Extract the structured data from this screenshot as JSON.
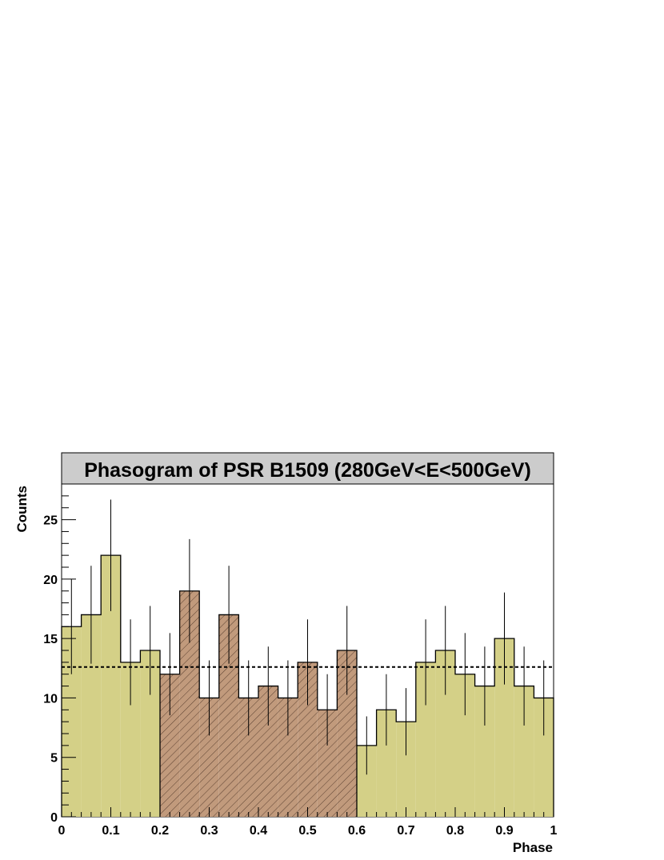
{
  "chart_data": {
    "type": "histogram",
    "title": "Phasogram of PSR B1509 (280GeV<E<500GeV)",
    "xlabel": "Phase",
    "ylabel": "Counts",
    "xlim": [
      0,
      1
    ],
    "ylim": [
      0,
      28
    ],
    "bin_width": 0.04,
    "bins_x0": [
      0.0,
      0.04,
      0.08,
      0.12,
      0.16,
      0.2,
      0.24,
      0.28,
      0.32,
      0.36,
      0.4,
      0.44,
      0.48,
      0.52,
      0.56,
      0.6,
      0.64,
      0.68,
      0.72,
      0.76,
      0.8,
      0.84,
      0.88,
      0.92,
      0.96
    ],
    "counts": [
      16,
      17,
      22,
      13,
      14,
      12,
      19,
      10,
      17,
      10,
      11,
      10,
      13,
      9,
      14,
      6,
      9,
      8,
      13,
      14,
      12,
      11,
      15,
      11,
      10
    ],
    "errors": [
      4,
      4.12,
      4.69,
      3.61,
      3.74,
      3.46,
      4.36,
      3.16,
      4.12,
      3.16,
      3.32,
      3.16,
      3.61,
      3,
      3.74,
      2.45,
      3,
      2.83,
      3.61,
      3.74,
      3.46,
      3.32,
      3.87,
      3.32,
      3.16
    ],
    "on_region": [
      0.2,
      0.6
    ],
    "background_level": 12.6,
    "x_ticks": [
      "0",
      "0.1",
      "0.2",
      "0.3",
      "0.4",
      "0.5",
      "0.6",
      "0.7",
      "0.8",
      "0.9",
      "1"
    ],
    "y_ticks": [
      "0",
      "5",
      "10",
      "15",
      "20",
      "25"
    ],
    "colors": {
      "off_fill": "#d4d087",
      "on_fill": "#c19a7c",
      "on_hatch": "#5a4030",
      "title_box": "#cccccc",
      "background_line": "#000000"
    },
    "grid": false,
    "legend": "none"
  }
}
